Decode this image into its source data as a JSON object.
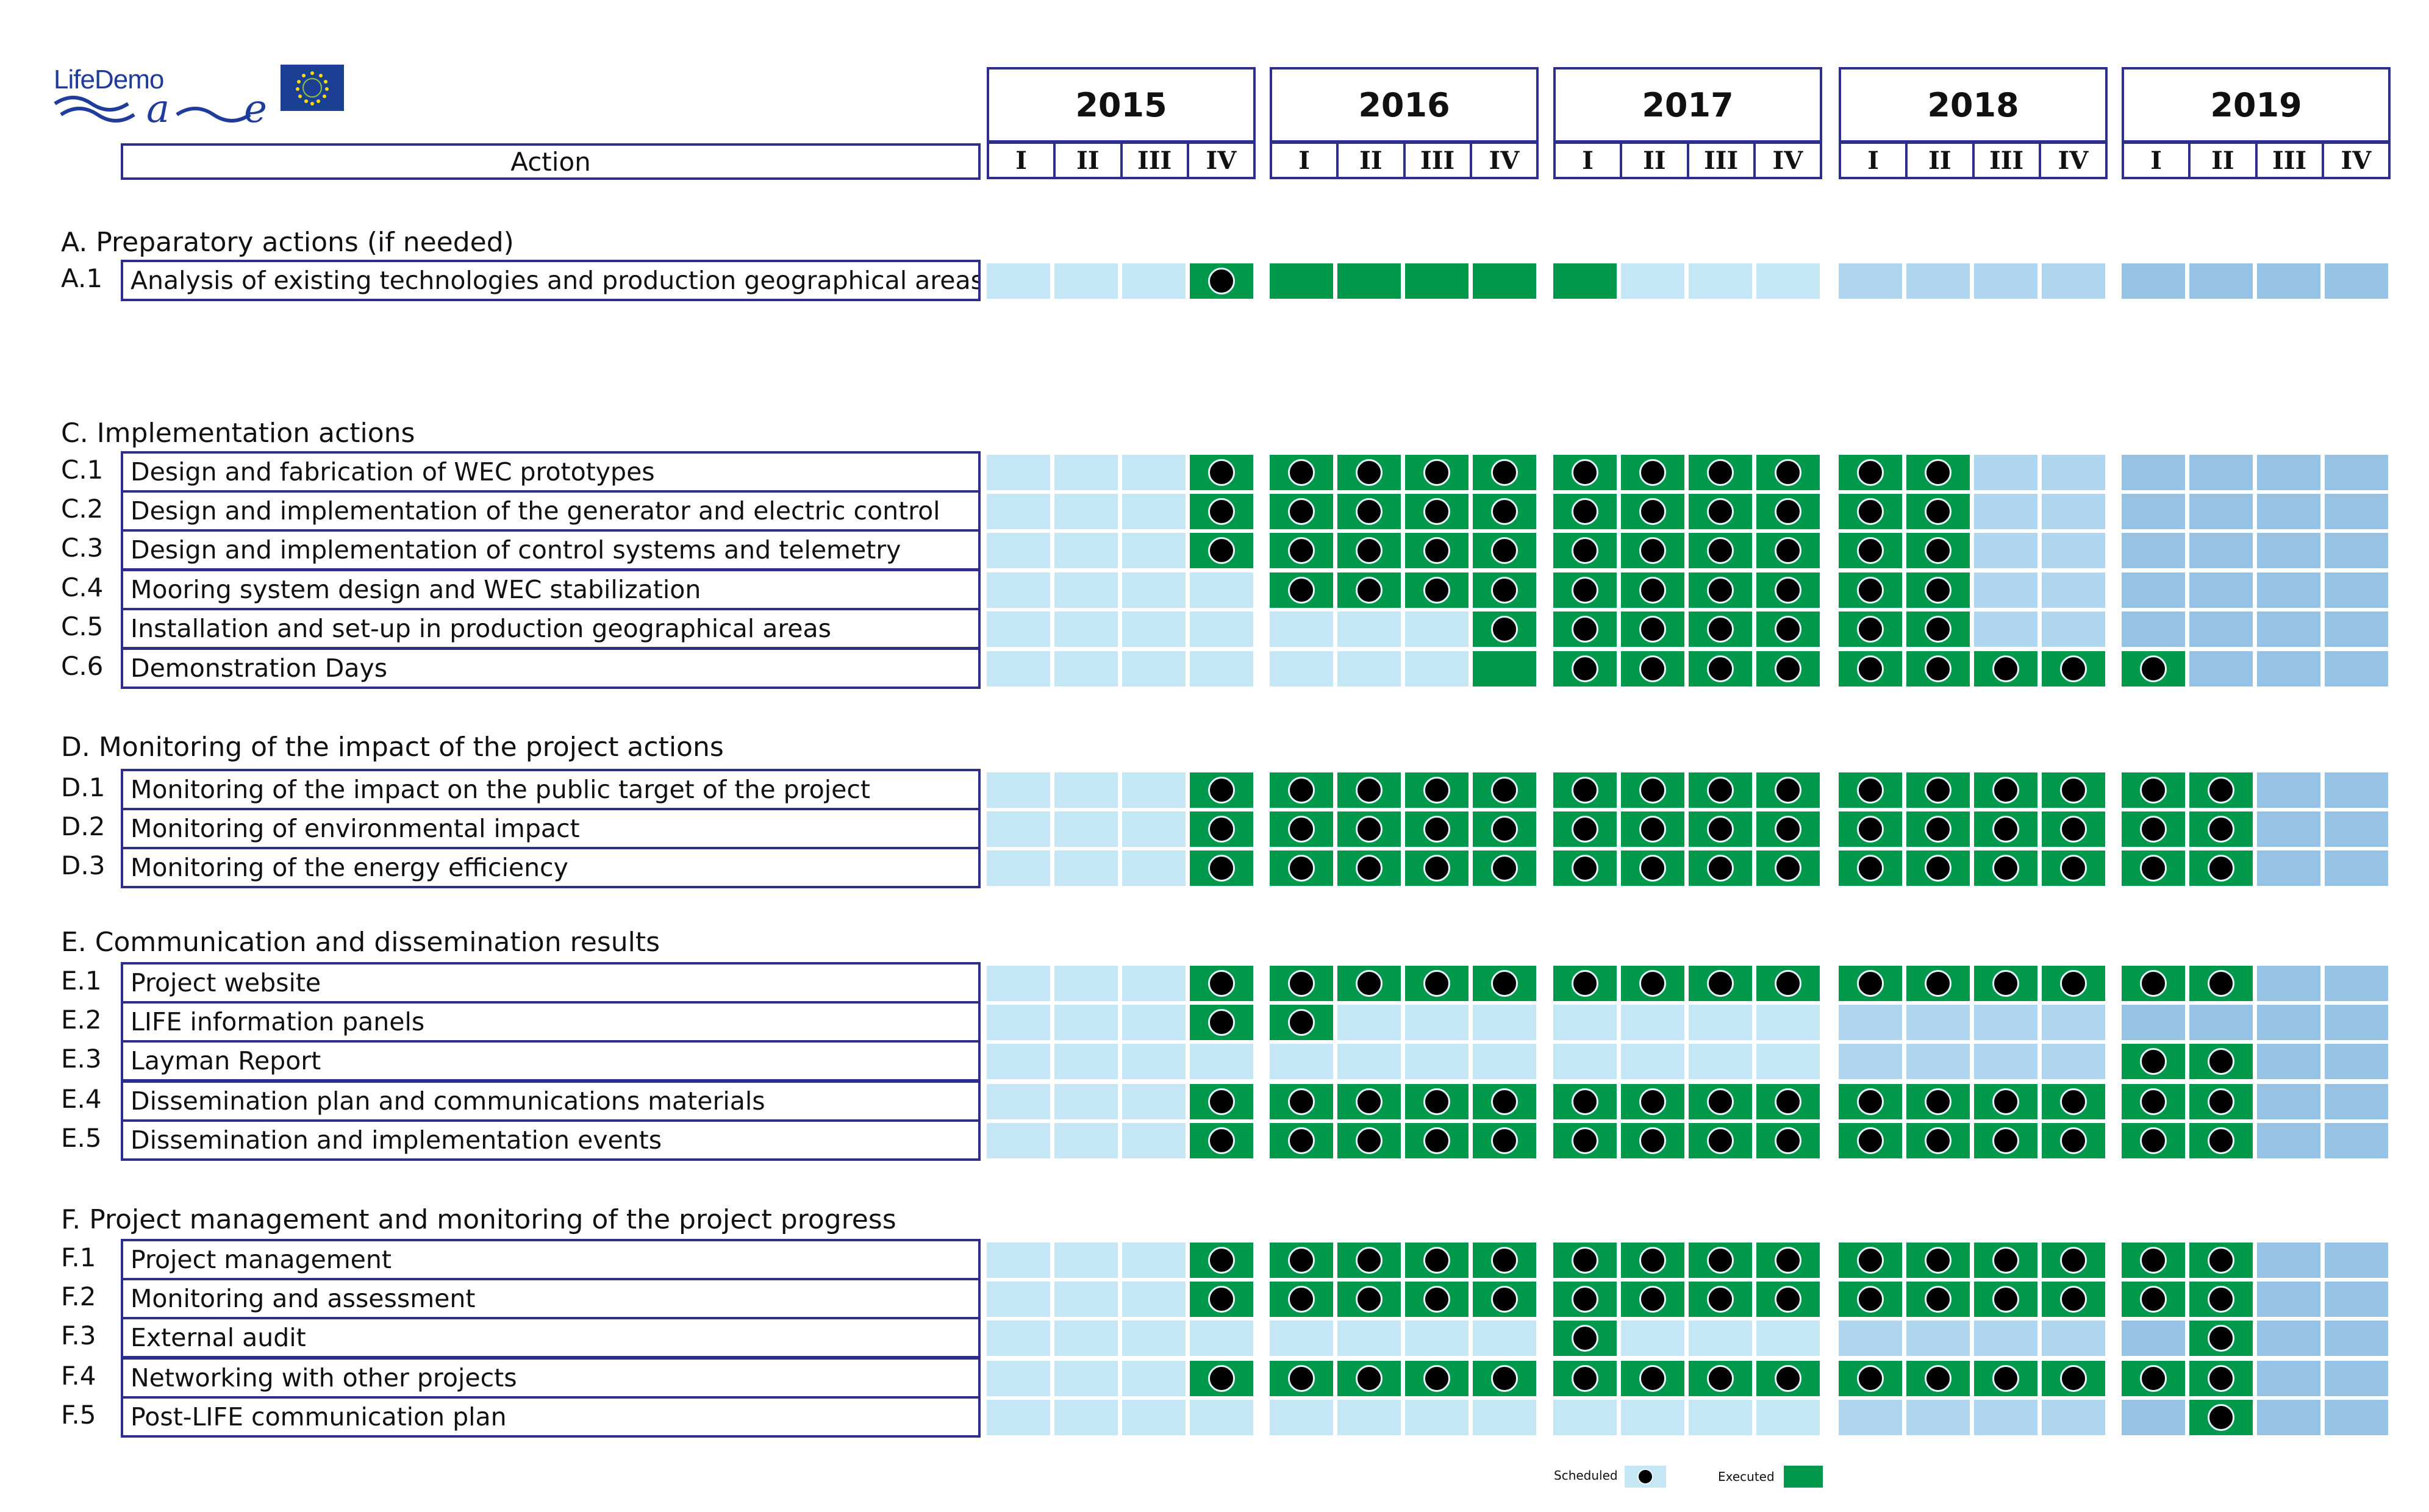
{
  "logo": {
    "text": "LifeDemo"
  },
  "header": {
    "action_label": "Action",
    "years": [
      "2015",
      "2016",
      "2017",
      "2018",
      "2019"
    ],
    "quarters": [
      "I",
      "II",
      "III",
      "IV"
    ]
  },
  "sections": [
    {
      "title": "A. Preparatory actions (if needed)",
      "rows": [
        {
          "code": "A.1",
          "label": "Analysis of existing technologies and production geographical areas",
          "cells": "000D EEEE E000 0000 0000"
        }
      ]
    },
    {
      "title": "C. Implementation actions",
      "rows": [
        {
          "code": "C.1",
          "label": "Design and fabrication of WEC prototypes",
          "cells": "000D DDDD DDDD DD00 0000"
        },
        {
          "code": "C.2",
          "label": "Design and implementation of the generator and electric control",
          "cells": "000D DDDD DDDD DD00 0000"
        },
        {
          "code": "C.3",
          "label": "Design and implementation of control systems and telemetry",
          "cells": "000D DDDD DDDD DD00 0000"
        },
        {
          "code": "C.4",
          "label": "Mooring system design and WEC stabilization",
          "cells": "0000 DDDD DDDD DD00 0000"
        },
        {
          "code": "C.5",
          "label": "Installation and set-up in production geographical areas",
          "cells": "0000 000D DDDD DD00 0000"
        },
        {
          "code": "C.6",
          "label": "Demonstration Days",
          "cells": "0000 000E DDDD DDDD D000"
        }
      ]
    },
    {
      "title": "D. Monitoring of the impact of the project actions",
      "rows": [
        {
          "code": "D.1",
          "label": "Monitoring of the impact on the public target of the project",
          "cells": "000D DDDD DDDD DDDD DD00"
        },
        {
          "code": "D.2",
          "label": "Monitoring of environmental impact",
          "cells": "000D DDDD DDDD DDDD DD00"
        },
        {
          "code": "D.3",
          "label": "Monitoring of the energy efficiency",
          "cells": "000D DDDD DDDD DDDD DD00"
        }
      ]
    },
    {
      "title": "E. Communication and dissemination results",
      "rows": [
        {
          "code": "E.1",
          "label": "Project website",
          "cells": "000D DDDD DDDD DDDD DD00"
        },
        {
          "code": "E.2",
          "label": "LIFE information panels",
          "cells": "000D D000 0000 0000 0000"
        },
        {
          "code": "E.3",
          "label": "Layman Report",
          "cells": "0000 0000 0000 0000 DD00"
        },
        {
          "code": "E.4",
          "label": "Dissemination plan and communications materials",
          "cells": "000D DDDD DDDD DDDD DD00"
        },
        {
          "code": "E.5",
          "label": "Dissemination and implementation events",
          "cells": "000D DDDD DDDD DDDD DD00"
        }
      ]
    },
    {
      "title": "F. Project management and monitoring of the project progress",
      "rows": [
        {
          "code": "F.1",
          "label": "Project management",
          "cells": "000D DDDD DDDD DDDD DD00"
        },
        {
          "code": "F.2",
          "label": "Monitoring and assessment",
          "cells": "000D DDDD DDDD DDDD DD00"
        },
        {
          "code": "F.3",
          "label": "External audit",
          "cells": "0000 0000 D000 0000 0D00"
        },
        {
          "code": "F.4",
          "label": "Networking with other projects",
          "cells": "000D DDDD DDDD DDDD DD00"
        },
        {
          "code": "F.5",
          "label": "Post-LIFE communication plan",
          "cells": "0000 0000 0000 0000 0D00"
        }
      ]
    }
  ],
  "legend": {
    "scheduled": "Scheduled",
    "executed": "Executed"
  },
  "colors": {
    "scheduled": "#c5e6f5",
    "executed": "#00984a",
    "border": "#2e2e8c"
  }
}
